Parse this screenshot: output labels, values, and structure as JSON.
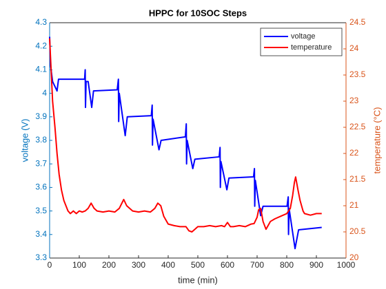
{
  "chart_data": {
    "type": "line",
    "title": "HPPC for 10SOC Steps",
    "xlabel": "time (min)",
    "ylabel": "voltage (V)",
    "y2label": "temperature (°C)",
    "xlim": [
      0,
      1000
    ],
    "xticks": [
      0,
      100,
      200,
      300,
      400,
      500,
      600,
      700,
      800,
      900,
      1000
    ],
    "ylim": [
      3.3,
      4.3
    ],
    "yticks": [
      3.3,
      3.4,
      3.5,
      3.6,
      3.7,
      3.8,
      3.9,
      4,
      4.1,
      4.2,
      4.3
    ],
    "y2lim": [
      20,
      24.5
    ],
    "y2ticks": [
      20,
      20.5,
      21,
      21.5,
      22,
      22.5,
      23,
      23.5,
      24,
      24.5
    ],
    "ycolor": "#0072bd",
    "y2color": "#d95319",
    "grid": false,
    "legend": "northeast",
    "series": [
      {
        "name": "voltage",
        "color": "#0000ff",
        "x": [
          0,
          3,
          10,
          25,
          30,
          118,
          120,
          121,
          123,
          130,
          142,
          148,
          228,
          232,
          233,
          235,
          255,
          262,
          343,
          346,
          347,
          349,
          369,
          376,
          458,
          461,
          462,
          464,
          483,
          490,
          572,
          575,
          576,
          578,
          598,
          605,
          688,
          691,
          692,
          694,
          712,
          720,
          801,
          805,
          806,
          808,
          828,
          840,
          918
        ],
        "values": [
          4.24,
          4.12,
          4.05,
          4.01,
          4.06,
          4.06,
          4.1,
          3.94,
          4.05,
          4.05,
          3.94,
          4.01,
          4.015,
          4.06,
          3.88,
          4.0,
          3.82,
          3.9,
          3.905,
          3.95,
          3.78,
          3.89,
          3.76,
          3.8,
          3.815,
          3.87,
          3.7,
          3.8,
          3.68,
          3.72,
          3.73,
          3.77,
          3.6,
          3.71,
          3.59,
          3.64,
          3.645,
          3.68,
          3.52,
          3.63,
          3.48,
          3.52,
          3.52,
          3.56,
          3.4,
          3.51,
          3.34,
          3.42,
          3.43
        ]
      },
      {
        "name": "temperature",
        "color": "#ff0000",
        "axis": "y2",
        "x": [
          0,
          5,
          10,
          18,
          25,
          32,
          40,
          48,
          55,
          62,
          70,
          80,
          90,
          100,
          110,
          120,
          130,
          140,
          150,
          160,
          180,
          200,
          220,
          235,
          250,
          260,
          280,
          300,
          320,
          340,
          355,
          365,
          375,
          385,
          400,
          420,
          440,
          460,
          470,
          480,
          490,
          500,
          520,
          540,
          560,
          580,
          590,
          600,
          610,
          620,
          640,
          660,
          680,
          690,
          700,
          705,
          712,
          720,
          730,
          745,
          760,
          780,
          800,
          812,
          820,
          826,
          830,
          838,
          845,
          855,
          860,
          880,
          900,
          918
        ],
        "values": [
          24.2,
          23.6,
          23.0,
          22.5,
          22.0,
          21.6,
          21.3,
          21.1,
          21.0,
          20.9,
          20.85,
          20.9,
          20.85,
          20.9,
          20.88,
          20.9,
          20.95,
          21.05,
          20.95,
          20.9,
          20.88,
          20.9,
          20.88,
          20.95,
          21.12,
          21.0,
          20.9,
          20.88,
          20.9,
          20.88,
          20.95,
          21.05,
          21.0,
          20.8,
          20.65,
          20.62,
          20.6,
          20.6,
          20.52,
          20.5,
          20.55,
          20.6,
          20.6,
          20.62,
          20.6,
          20.62,
          20.6,
          20.68,
          20.6,
          20.6,
          20.62,
          20.6,
          20.65,
          20.66,
          20.78,
          20.92,
          20.95,
          20.7,
          20.55,
          20.7,
          20.75,
          20.8,
          20.85,
          20.95,
          21.2,
          21.45,
          21.55,
          21.3,
          21.1,
          20.9,
          20.85,
          20.82,
          20.85,
          20.85
        ]
      }
    ]
  }
}
